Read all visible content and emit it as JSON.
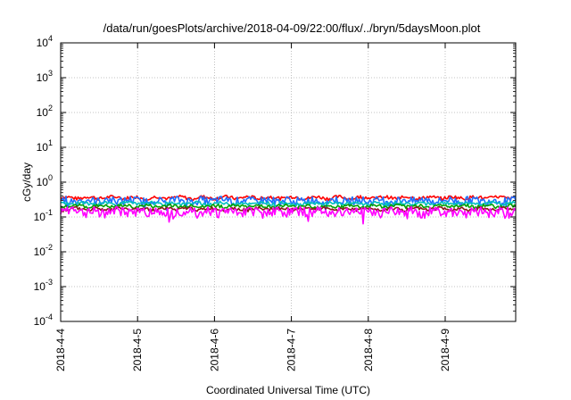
{
  "chart_data": {
    "type": "line",
    "title": "/data/run/goesPlots/archive/2018-04-09/22:00/flux/../bryn/5daysMoon.plot",
    "xlabel": "Coordinated Universal Time (UTC)",
    "ylabel": "cGy/day",
    "y_scale": "log",
    "ylim": [
      0.0001,
      10000
    ],
    "y_ticks": [
      {
        "value": 0.0001,
        "base": "10",
        "exp": "-4"
      },
      {
        "value": 0.001,
        "base": "10",
        "exp": "-3"
      },
      {
        "value": 0.01,
        "base": "10",
        "exp": "-2"
      },
      {
        "value": 0.1,
        "base": "10",
        "exp": "-1"
      },
      {
        "value": 1,
        "base": "10",
        "exp": "0"
      },
      {
        "value": 10,
        "base": "10",
        "exp": "1"
      },
      {
        "value": 100,
        "base": "10",
        "exp": "2"
      },
      {
        "value": 1000,
        "base": "10",
        "exp": "3"
      },
      {
        "value": 10000,
        "base": "10",
        "exp": "4"
      }
    ],
    "xlim": [
      "2018-04-04",
      "2018-04-09T22:00"
    ],
    "x_ticks": [
      "2018-4-4",
      "2018-4-5",
      "2018-4-6",
      "2018-4-7",
      "2018-4-8",
      "2018-4-9"
    ],
    "grid": true,
    "legend": "none",
    "series": [
      {
        "color": "#ff0000",
        "level": 0.36,
        "noise": 0.045,
        "dips": 0.08
      },
      {
        "color": "#1e6fff",
        "level": 0.3,
        "noise": 0.09,
        "dips": 0.25
      },
      {
        "color": "#00bfbf",
        "level": 0.245,
        "noise": 0.03,
        "dips": 0.08
      },
      {
        "color": "#00a000",
        "level": 0.205,
        "noise": 0.025,
        "dips": 0.06
      },
      {
        "color": "#8b1a1a",
        "level": 0.17,
        "noise": 0.02,
        "dips": 0.05
      },
      {
        "color": "#ff00ff",
        "level": 0.145,
        "noise": 0.05,
        "dips": 0.45
      }
    ]
  }
}
